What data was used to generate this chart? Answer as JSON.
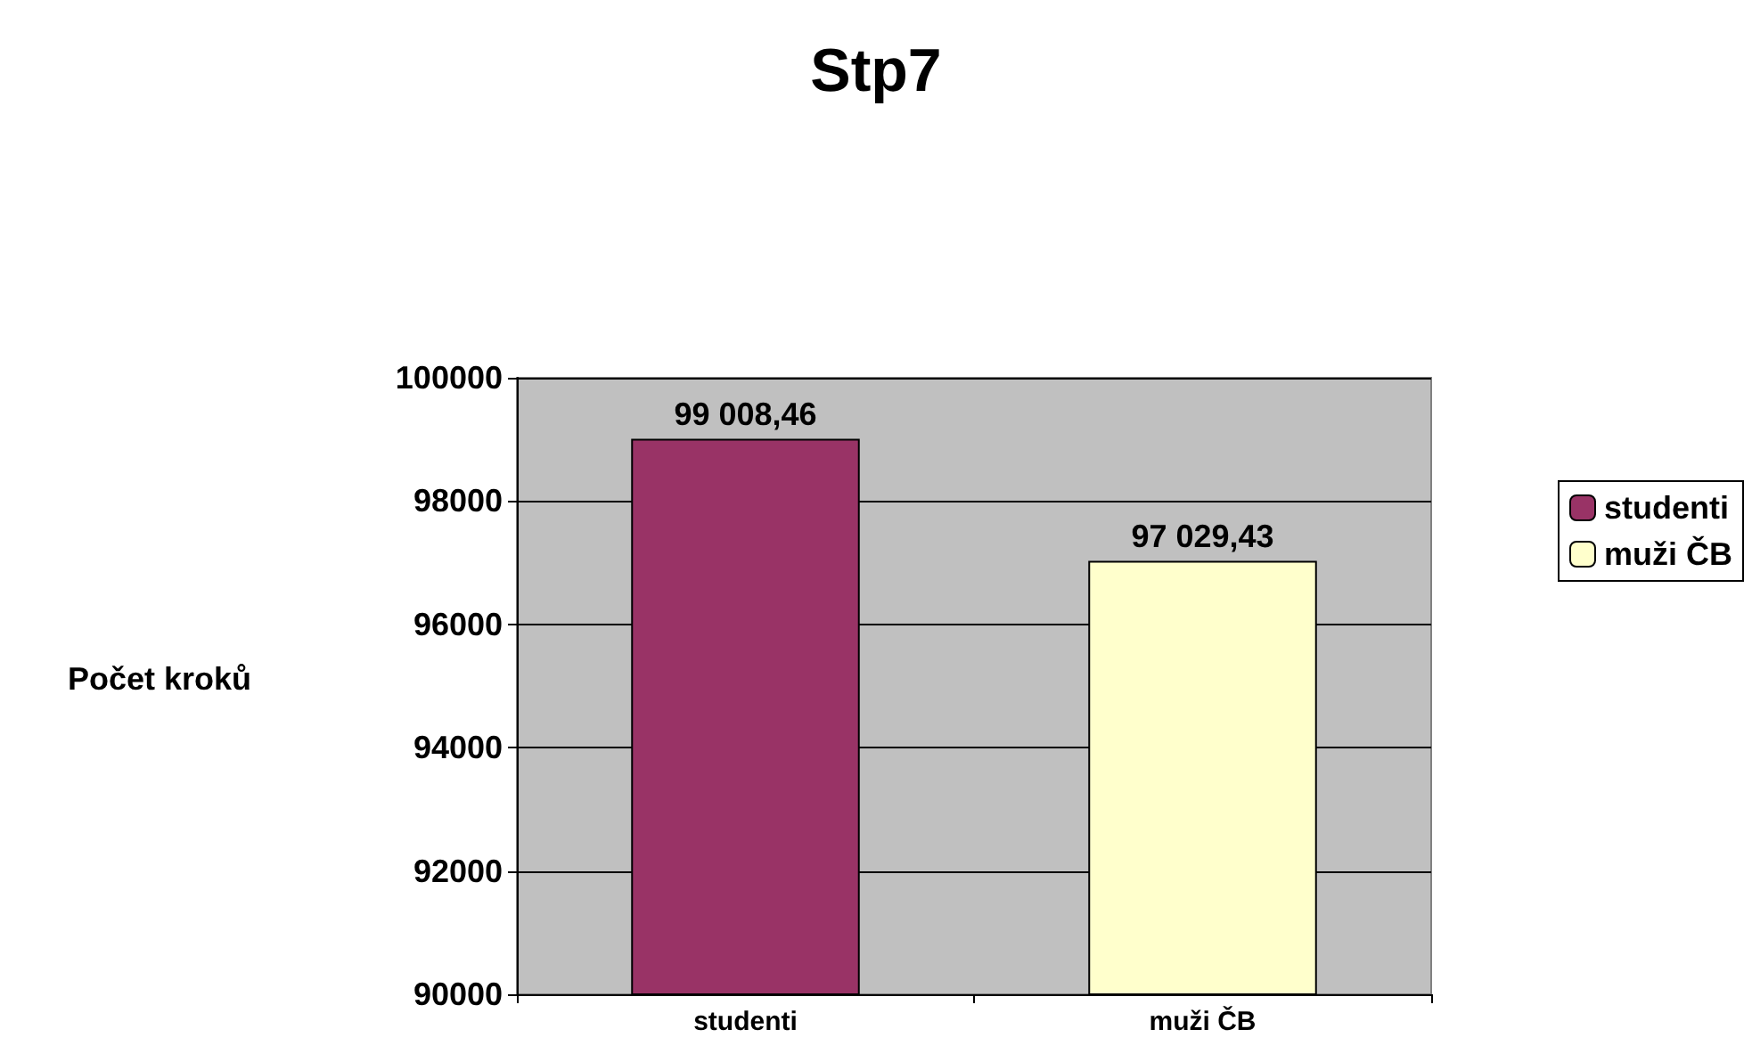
{
  "chart_data": {
    "type": "bar",
    "title": "Stp7",
    "ylabel": "Počet kroků",
    "categories": [
      "studenti",
      "muži ČB"
    ],
    "series": [
      {
        "name": "studenti",
        "color": "#993366",
        "values": [
          99008.46,
          null
        ],
        "value_labels": [
          "99 008,46",
          null
        ]
      },
      {
        "name": "muži ČB",
        "color": "#ffffcc",
        "values": [
          null,
          97029.43
        ],
        "value_labels": [
          null,
          "97 029,43"
        ]
      }
    ],
    "ylim": [
      90000,
      100000
    ],
    "yticks": [
      90000,
      92000,
      94000,
      96000,
      98000,
      100000
    ],
    "grid": "y",
    "legend": "right"
  }
}
